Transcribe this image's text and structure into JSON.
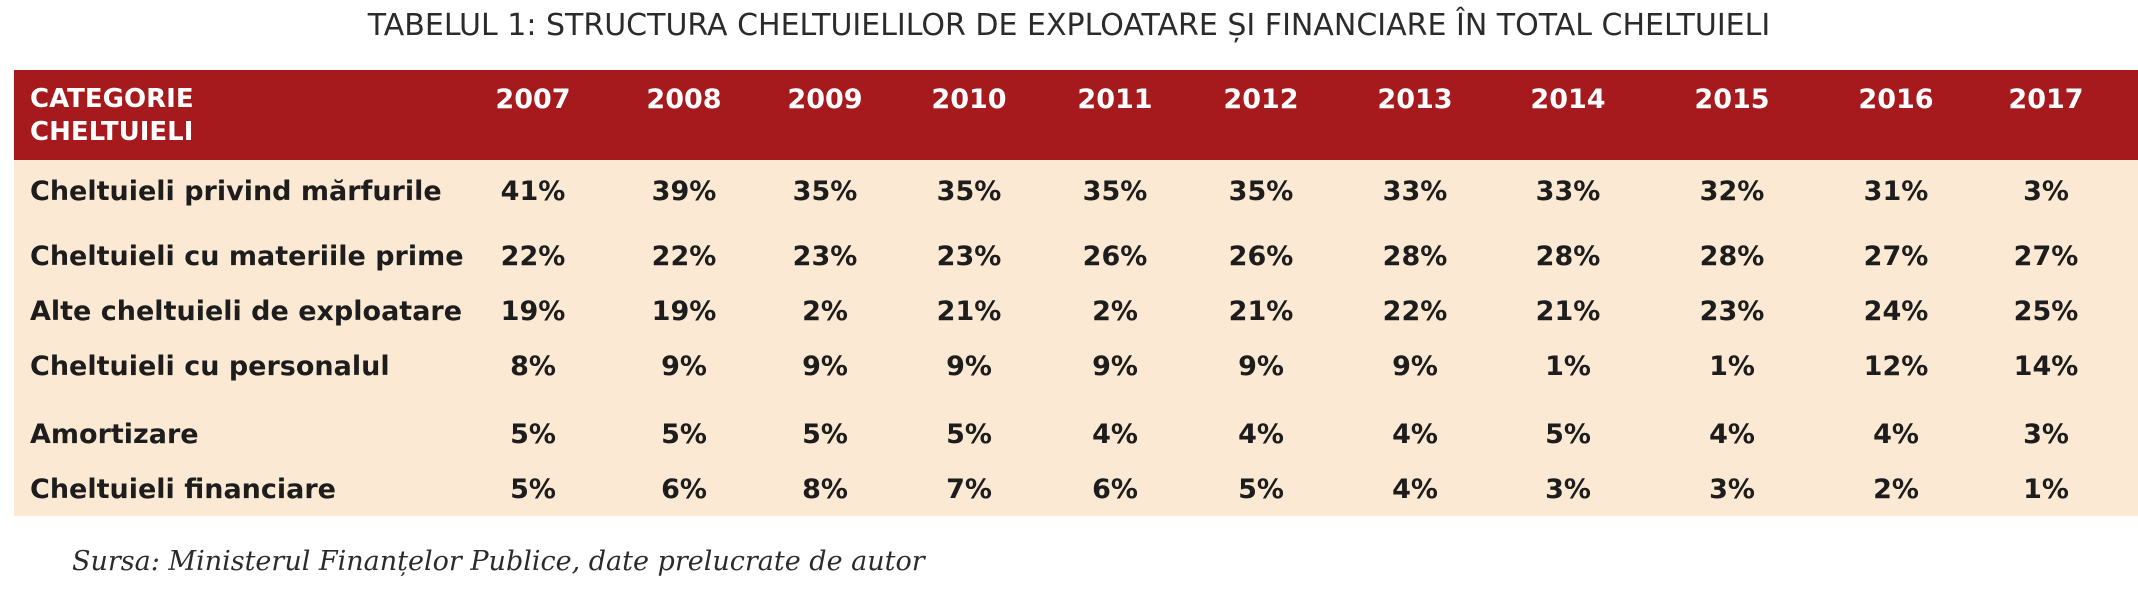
{
  "title": "TABELUL 1: STRUCTURA CHELTUIELILOR DE EXPLOATARE ȘI FINANCIARE ÎN TOTAL CHELTUIELI",
  "colors": {
    "header_bg": "#a6191d",
    "body_bg": "#fbe9d3",
    "header_text": "#ffffff",
    "body_text": "#1d1d1d"
  },
  "table": {
    "category_header": "CATEGORIE CHELTUIELI",
    "years": [
      "2007",
      "2008",
      "2009",
      "2010",
      "2011",
      "2012",
      "2013",
      "2014",
      "2015",
      "2016",
      "2017"
    ],
    "rows": [
      {
        "label": "Cheltuieli privind mărfurile",
        "values": [
          "41%",
          "39%",
          "35%",
          "35%",
          "35%",
          "35%",
          "33%",
          "33%",
          "32%",
          "31%",
          "3%"
        ]
      },
      {
        "label": "Cheltuieli cu materiile prime",
        "values": [
          "22%",
          "22%",
          "23%",
          "23%",
          "26%",
          "26%",
          "28%",
          "28%",
          "28%",
          "27%",
          "27%"
        ]
      },
      {
        "label": "Alte cheltuieli de exploatare",
        "values": [
          "19%",
          "19%",
          "2%",
          "21%",
          "2%",
          "21%",
          "22%",
          "21%",
          "23%",
          "24%",
          "25%"
        ]
      },
      {
        "label": "Cheltuieli cu personalul",
        "values": [
          "8%",
          "9%",
          "9%",
          "9%",
          "9%",
          "9%",
          "9%",
          "1%",
          "1%",
          "12%",
          "14%"
        ]
      },
      {
        "label": "Amortizare",
        "values": [
          "5%",
          "5%",
          "5%",
          "5%",
          "4%",
          "4%",
          "4%",
          "5%",
          "4%",
          "4%",
          "3%"
        ]
      },
      {
        "label": "Cheltuieli financiare",
        "values": [
          "5%",
          "6%",
          "8%",
          "7%",
          "6%",
          "5%",
          "4%",
          "3%",
          "3%",
          "2%",
          "1%"
        ]
      }
    ]
  },
  "source": "Sursa: Ministerul Finanțelor Publice, date prelucrate de autor"
}
